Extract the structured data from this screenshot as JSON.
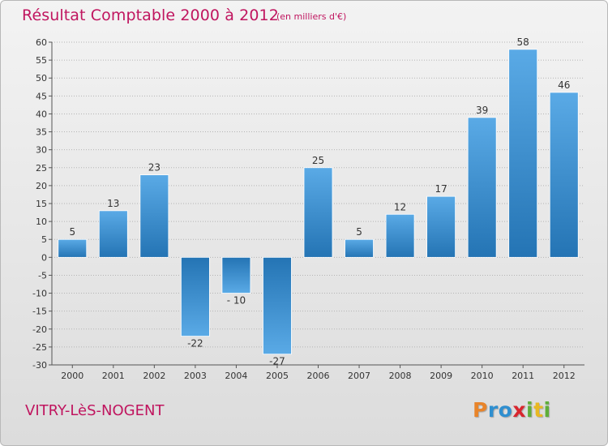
{
  "title": "Résultat Comptable 2000 à 2012",
  "subtitle": "(en milliers d'€)",
  "place": "VITRY-LèS-NOGENT",
  "logo": {
    "letters": [
      "P",
      "r",
      "o",
      "x",
      "i",
      "t",
      "i"
    ],
    "colors": [
      "#e8842a",
      "#2f8fd0",
      "#2f8fd0",
      "#d8262e",
      "#5fae3a",
      "#e8b823",
      "#5fae3a"
    ]
  },
  "colors": {
    "accent": "#c0155f",
    "bar_light": "#5aaae6",
    "bar_dark": "#2474b4",
    "axis": "#555555",
    "grid": "#b4b4b4"
  },
  "chart_data": {
    "type": "bar",
    "title": "Résultat Comptable 2000 à 2012",
    "ylabel": "",
    "xlabel": "",
    "categories": [
      "2000",
      "2001",
      "2002",
      "2003",
      "2004",
      "2005",
      "2006",
      "2007",
      "2008",
      "2009",
      "2010",
      "2011",
      "2012"
    ],
    "values": [
      5,
      13,
      23,
      -22,
      -10,
      -27,
      25,
      5,
      12,
      17,
      39,
      58,
      46
    ],
    "value_labels": [
      "5",
      "13",
      "23",
      "-22",
      "- 10",
      "-27",
      "25",
      "5",
      "12",
      "17",
      "39",
      "58",
      "46"
    ],
    "ylim": [
      -30,
      60
    ],
    "yticks": [
      -30,
      -25,
      -20,
      -15,
      -10,
      -5,
      0,
      5,
      10,
      15,
      20,
      25,
      30,
      35,
      40,
      45,
      50,
      55,
      60
    ],
    "grid": true
  }
}
